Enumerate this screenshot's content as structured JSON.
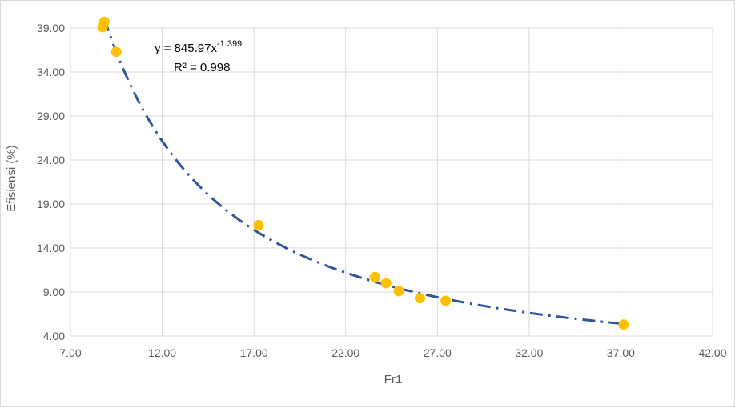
{
  "chart_data": {
    "type": "scatter",
    "xlabel": "Fr1",
    "ylabel": "Efisiensi (%)",
    "xlim": [
      7.0,
      42.0
    ],
    "ylim": [
      4.0,
      39.0
    ],
    "x_ticks": [
      7.0,
      12.0,
      17.0,
      22.0,
      27.0,
      32.0,
      37.0,
      42.0
    ],
    "y_ticks": [
      4.0,
      9.0,
      14.0,
      19.0,
      24.0,
      29.0,
      34.0,
      39.0
    ],
    "x_tick_labels": [
      "7.00",
      "12.00",
      "17.00",
      "22.00",
      "27.00",
      "32.00",
      "37.00",
      "42.00"
    ],
    "y_tick_labels": [
      "4.00",
      "9.00",
      "14.00",
      "19.00",
      "24.00",
      "29.00",
      "34.00",
      "39.00"
    ],
    "grid": true,
    "legend": "none",
    "series": [
      {
        "points": [
          {
            "x": 8.85,
            "y": 39.7
          },
          {
            "x": 8.75,
            "y": 39.1
          },
          {
            "x": 9.5,
            "y": 36.3
          },
          {
            "x": 17.25,
            "y": 16.6
          },
          {
            "x": 23.6,
            "y": 10.7
          },
          {
            "x": 24.2,
            "y": 10.0
          },
          {
            "x": 24.9,
            "y": 9.1
          },
          {
            "x": 26.05,
            "y": 8.3
          },
          {
            "x": 27.45,
            "y": 8.0
          },
          {
            "x": 37.15,
            "y": 5.3
          }
        ],
        "color": "#FFC000"
      }
    ],
    "trendline": {
      "type": "power",
      "coefficient": 845.97,
      "exponent": -1.399,
      "x_range": [
        8.85,
        37.15
      ],
      "color": "#2F5597",
      "style": "dash-dot"
    },
    "annotation": {
      "equation_base": "y = 845.97x",
      "equation_exponent": "-1.399",
      "r_squared": "R² = 0.998"
    }
  }
}
